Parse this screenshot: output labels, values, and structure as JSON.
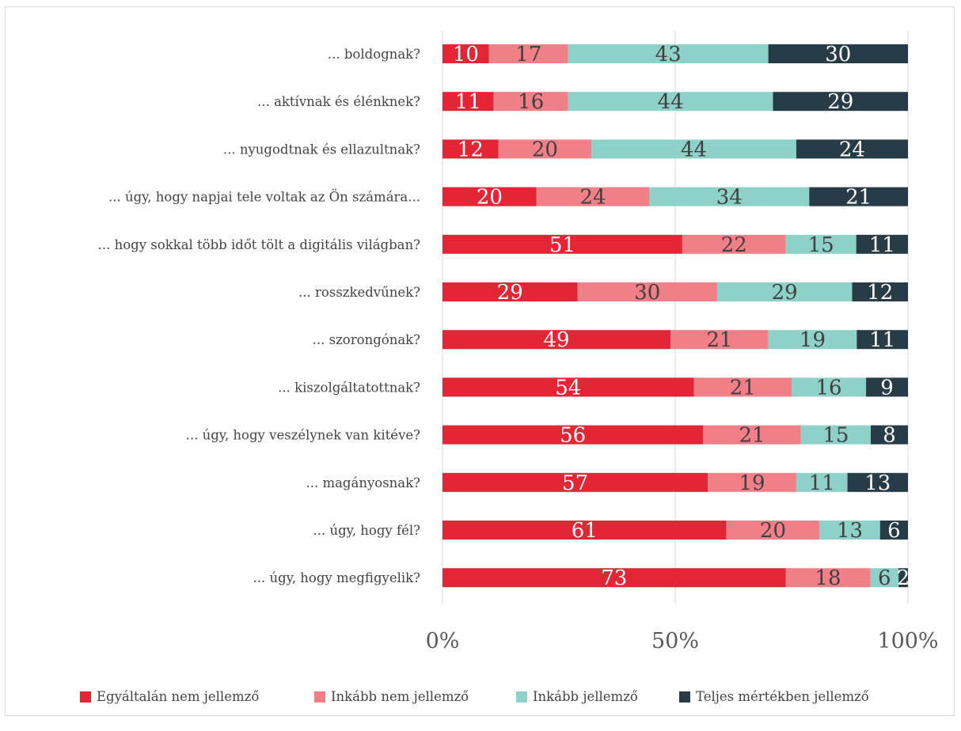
{
  "chart_data": {
    "type": "bar",
    "orientation": "horizontal",
    "stacked": true,
    "percent_stacked": true,
    "categories": [
      "... boldognak?",
      "... aktívnak és élénknek?",
      "... nyugodtnak és ellazultnak?",
      "... úgy, hogy napjai tele voltak az Ön számára...",
      "... hogy sokkal több időt tölt a digitális világban?",
      "... rosszkedvűnek?",
      "... szorongónak?",
      "... kiszolgáltatottnak?",
      "... úgy, hogy veszélynek van kitéve?",
      "... magányosnak?",
      "... úgy, hogy fél?",
      "... úgy, hogy megfigyelik?"
    ],
    "series": [
      {
        "name": "Egyáltalán nem jellemző",
        "color": "#e32636",
        "label_color": "#ffffff",
        "values": [
          10,
          11,
          12,
          20,
          51,
          29,
          49,
          54,
          56,
          57,
          61,
          73
        ]
      },
      {
        "name": "Inkább nem jellemző",
        "color": "#f07f87",
        "label_color": "#404040",
        "values": [
          17,
          16,
          20,
          24,
          22,
          30,
          21,
          21,
          21,
          19,
          20,
          18
        ]
      },
      {
        "name": "Inkább jellemző",
        "color": "#8ed1c8",
        "label_color": "#404040",
        "values": [
          43,
          44,
          44,
          34,
          15,
          29,
          19,
          16,
          15,
          11,
          13,
          6
        ]
      },
      {
        "name": "Teljes mértékben jellemző",
        "color": "#283c47",
        "label_color": "#ffffff",
        "values": [
          30,
          29,
          24,
          21,
          11,
          12,
          11,
          9,
          8,
          13,
          6,
          2
        ]
      }
    ],
    "x_ticks": [
      "0%",
      "50%",
      "100%"
    ],
    "xlim": [
      0,
      100
    ],
    "grid": true,
    "legend_position": "bottom",
    "title": "",
    "xlabel": "",
    "ylabel": ""
  }
}
